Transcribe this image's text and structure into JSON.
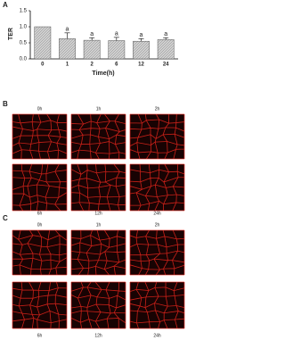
{
  "chart_data": {
    "type": "bar",
    "panel_label": "A",
    "ylabel": "TER",
    "xlabel": "Time(h)",
    "categories": [
      "0",
      "1",
      "2",
      "6",
      "12",
      "24"
    ],
    "values": [
      1.0,
      0.63,
      0.58,
      0.57,
      0.55,
      0.6
    ],
    "errors": [
      0,
      0.18,
      0.08,
      0.1,
      0.08,
      0.06
    ],
    "significance": [
      null,
      "a",
      "a",
      "a",
      "a",
      "a"
    ],
    "color": "#bdbdbd",
    "ylim": [
      0,
      1.5
    ],
    "yticks": [
      {
        "value": 0,
        "label": "0.0"
      },
      {
        "value": 0.5,
        "label": "0.5"
      },
      {
        "value": 1,
        "label": "1.0"
      },
      {
        "value": 1.5,
        "label": "1.5"
      }
    ]
  },
  "image_panels": [
    {
      "label": "B",
      "times": [
        "0h",
        "1h",
        "2h",
        "6h",
        "12h",
        "24h"
      ]
    },
    {
      "label": "C",
      "times": [
        "0h",
        "1h",
        "2h",
        "6h",
        "12h",
        "24h"
      ]
    }
  ]
}
